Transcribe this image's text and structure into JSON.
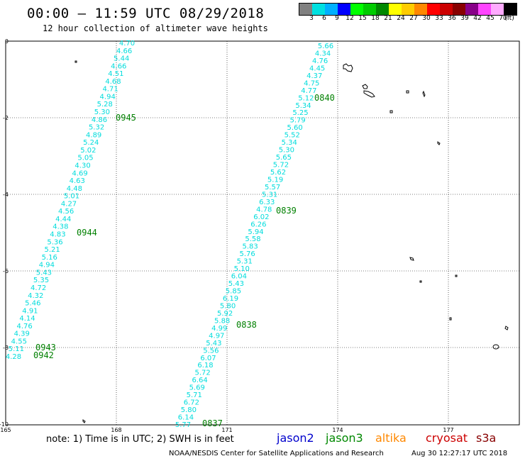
{
  "header": {
    "title": "00:00 – 11:59 UTC 08/29/2018",
    "subtitle": "12 hour collection of altimeter wave heights"
  },
  "legend": {
    "colors": [
      "#808080",
      "#00e0e0",
      "#00b0ff",
      "#0000ff",
      "#00ff00",
      "#00cc00",
      "#008800",
      "#ffff00",
      "#ffcc00",
      "#ff8800",
      "#ff0000",
      "#cc0000",
      "#880000",
      "#880088",
      "#ff44ff",
      "#ffaaff",
      "#000000"
    ],
    "ticks": [
      "3",
      "6",
      "9",
      "12",
      "15",
      "18",
      "21",
      "24",
      "27",
      "30",
      "33",
      "36",
      "39",
      "42",
      "45",
      "70",
      "(ft)"
    ]
  },
  "axes": {
    "x_ticks": [
      "165",
      "168",
      "171",
      "174",
      "177"
    ],
    "y_ticks": [
      "0",
      "-2",
      "-4",
      "-6",
      "-8",
      "-10"
    ],
    "grid": true
  },
  "tracks": [
    {
      "name": "track-a",
      "color": "#00dcdc",
      "values": [
        "4.70",
        "4.66",
        "5.44",
        "4.66",
        "4.51",
        "4.68",
        "4.71",
        "4.94",
        "5.28",
        "5.30",
        "4.86",
        "5.32",
        "4.89",
        "5.24",
        "5.02",
        "5.05",
        "4.30",
        "4.69",
        "4.63",
        "4.48",
        "5.01",
        "4.27",
        "4.56",
        "4.44",
        "4.38",
        "4.83",
        "5.36",
        "5.21",
        "5.16",
        "4.94",
        "5.43",
        "5.35",
        "4.72",
        "4.32",
        "5.46",
        "4.91",
        "4.14",
        "4.76",
        "4.39",
        "4.55",
        "5.11",
        "4.28"
      ]
    },
    {
      "name": "track-b",
      "color": "#00dcdc",
      "values": [
        "5.66",
        "4.34",
        "4.76",
        "4.45",
        "4.37",
        "4.75",
        "4.77",
        "5.12",
        "5.34",
        "5.25",
        "5.79",
        "5.60",
        "5.52",
        "5.34",
        "5.30",
        "5.65",
        "5.72",
        "5.62",
        "5.19",
        "5.57",
        "5.31",
        "6.33",
        "4.78",
        "6.02",
        "6.26",
        "5.94",
        "5.58",
        "5.83",
        "5.76",
        "5.31",
        "5.10",
        "6.04",
        "5.43",
        "5.85",
        "6.19",
        "5.80",
        "5.92",
        "5.88",
        "4.99",
        "4.97",
        "5.43",
        "5.56",
        "6.07",
        "6.18",
        "5.72",
        "6.64",
        "5.69",
        "5.71",
        "6.72",
        "5.80",
        "6.14",
        "5.77"
      ]
    }
  ],
  "time_labels": [
    {
      "text": "0945",
      "color": "#008000"
    },
    {
      "text": "0944",
      "color": "#008000"
    },
    {
      "text": "0943",
      "color": "#008000"
    },
    {
      "text": "0942",
      "color": "#008000"
    },
    {
      "text": "0840",
      "color": "#008000"
    },
    {
      "text": "0839",
      "color": "#008000"
    },
    {
      "text": "0838",
      "color": "#008000"
    },
    {
      "text": "0837",
      "color": "#008000"
    }
  ],
  "footer": {
    "note": "note: 1) Time is in UTC; 2) SWH is in feet",
    "satellites": [
      {
        "name": "jason2",
        "color": "#0000cc"
      },
      {
        "name": "jason3",
        "color": "#008800"
      },
      {
        "name": "altika",
        "color": "#ff8800"
      },
      {
        "name": "cryosat",
        "color": "#cc0000"
      },
      {
        "name": "s3a",
        "color": "#880000"
      }
    ],
    "credit": "NOAA/NESDIS Center for Satellite Applications and Research",
    "timestamp": "Aug 30 12:27:17 UTC 2018"
  }
}
